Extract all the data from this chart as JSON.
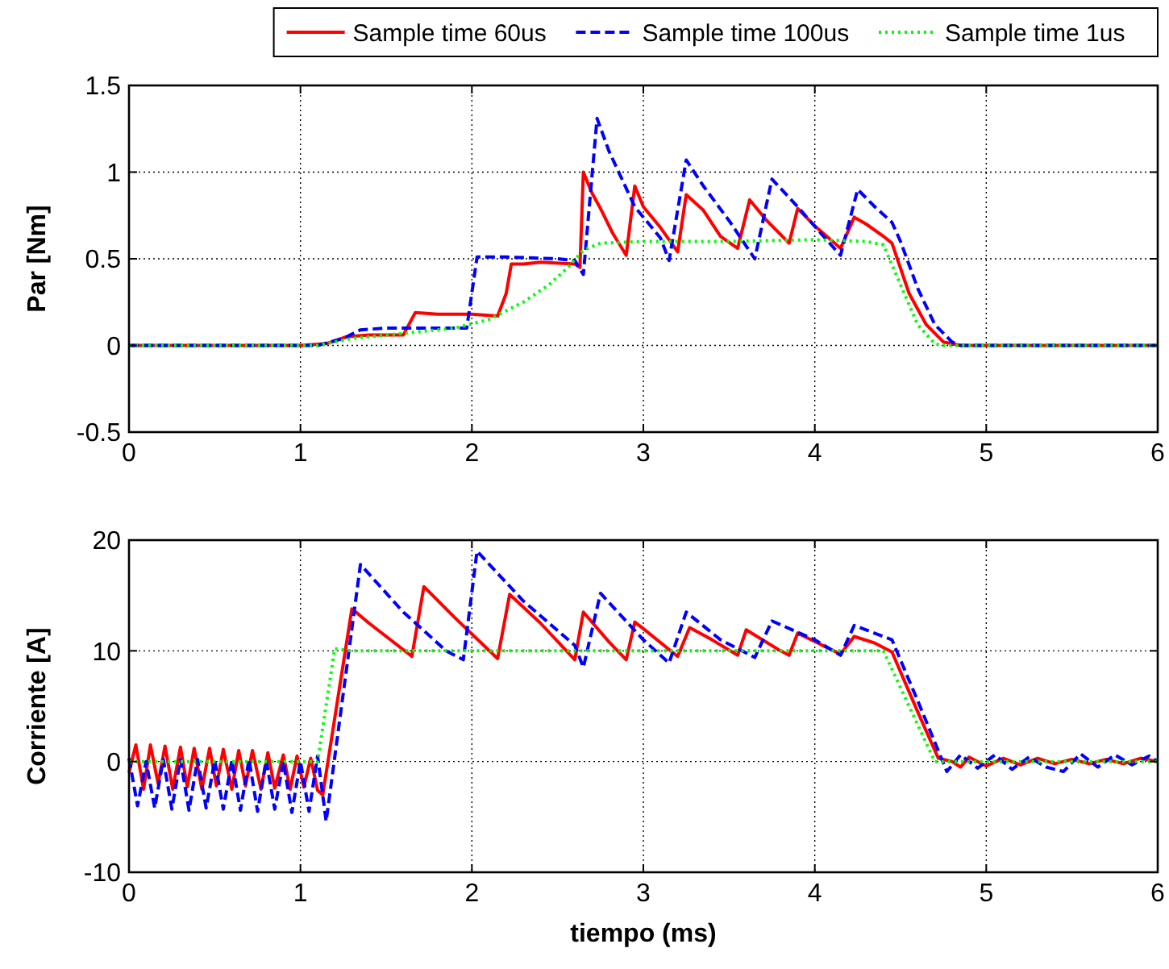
{
  "chart_data": [
    {
      "type": "line",
      "ylabel": "Par [Nm]",
      "xlim": [
        0,
        6
      ],
      "xticks": [
        0,
        1,
        2,
        3,
        4,
        5,
        6
      ],
      "ylim": [
        -0.5,
        1.5
      ],
      "yticks": [
        -0.5,
        0,
        0.5,
        1,
        1.5
      ],
      "grid": true,
      "legend": "top",
      "series": [
        {
          "name": "Sample time 60us",
          "color": "#ff0000",
          "line_style": "solid",
          "x": [
            0,
            1.0,
            1.15,
            1.27,
            1.4,
            1.6,
            1.67,
            1.8,
            2.0,
            2.15,
            2.2,
            2.23,
            2.3,
            2.4,
            2.6,
            2.63,
            2.65,
            2.7,
            2.75,
            2.82,
            2.9,
            2.95,
            3.0,
            3.1,
            3.2,
            3.25,
            3.35,
            3.45,
            3.55,
            3.62,
            3.72,
            3.85,
            3.9,
            4.0,
            4.15,
            4.23,
            4.3,
            4.4,
            4.45,
            4.55,
            4.65,
            4.75,
            4.85,
            6
          ],
          "values": [
            0,
            0,
            0.01,
            0.05,
            0.06,
            0.06,
            0.19,
            0.18,
            0.18,
            0.17,
            0.3,
            0.47,
            0.47,
            0.48,
            0.47,
            0.45,
            1.0,
            0.88,
            0.79,
            0.65,
            0.52,
            0.92,
            0.8,
            0.68,
            0.54,
            0.87,
            0.78,
            0.63,
            0.56,
            0.84,
            0.72,
            0.59,
            0.79,
            0.69,
            0.56,
            0.74,
            0.7,
            0.63,
            0.59,
            0.3,
            0.12,
            0.02,
            0,
            0
          ]
        },
        {
          "name": "Sample time 100us",
          "color": "#0000ff",
          "line_style": "dashed",
          "x": [
            0,
            1.1,
            1.25,
            1.35,
            1.5,
            1.65,
            1.9,
            1.97,
            2.03,
            2.2,
            2.5,
            2.6,
            2.65,
            2.73,
            2.8,
            2.95,
            3.1,
            3.15,
            3.25,
            3.35,
            3.5,
            3.65,
            3.75,
            3.9,
            4.05,
            4.15,
            4.25,
            4.35,
            4.45,
            4.5,
            4.6,
            4.7,
            4.8,
            4.85,
            6
          ],
          "values": [
            0,
            0,
            0.04,
            0.09,
            0.1,
            0.1,
            0.1,
            0.1,
            0.51,
            0.51,
            0.5,
            0.49,
            0.41,
            1.31,
            1.12,
            0.8,
            0.62,
            0.49,
            1.07,
            0.92,
            0.72,
            0.5,
            0.96,
            0.8,
            0.63,
            0.52,
            0.9,
            0.8,
            0.71,
            0.6,
            0.33,
            0.12,
            0.02,
            0,
            0
          ]
        },
        {
          "name": "Sample time 1us",
          "color": "#00ff00",
          "line_style": "dotted",
          "x": [
            0,
            1.1,
            1.3,
            1.6,
            1.9,
            2.1,
            2.3,
            2.45,
            2.55,
            2.65,
            2.75,
            3.0,
            3.5,
            4.0,
            4.3,
            4.4,
            4.5,
            4.6,
            4.7,
            4.75,
            6
          ],
          "values": [
            0,
            0,
            0.04,
            0.07,
            0.1,
            0.15,
            0.25,
            0.35,
            0.44,
            0.55,
            0.59,
            0.6,
            0.6,
            0.61,
            0.6,
            0.58,
            0.35,
            0.12,
            0.01,
            0,
            0
          ]
        }
      ]
    },
    {
      "type": "line",
      "ylabel": "Corriente [A]",
      "xlabel": "tiempo (ms)",
      "xlim": [
        0,
        6
      ],
      "xticks": [
        0,
        1,
        2,
        3,
        4,
        5,
        6
      ],
      "ylim": [
        -10,
        20
      ],
      "yticks": [
        -10,
        0,
        10,
        20
      ],
      "grid": true,
      "series": [
        {
          "color": "#ff0000",
          "line_style": "solid",
          "x": [
            0,
            0.04,
            0.085,
            0.125,
            0.17,
            0.21,
            0.255,
            0.3,
            0.34,
            0.38,
            0.425,
            0.47,
            0.51,
            0.55,
            0.6,
            0.64,
            0.68,
            0.72,
            0.77,
            0.81,
            0.85,
            0.9,
            0.94,
            0.98,
            1.02,
            1.06,
            1.1,
            1.13,
            1.3,
            1.4,
            1.65,
            1.72,
            1.9,
            2.15,
            2.22,
            2.4,
            2.6,
            2.65,
            2.8,
            2.9,
            2.95,
            3.0,
            3.2,
            3.27,
            3.4,
            3.55,
            3.6,
            3.8,
            3.85,
            3.9,
            4.15,
            4.23,
            4.35,
            4.45,
            4.6,
            4.72,
            4.8,
            4.85,
            4.9,
            5.0,
            5.1,
            5.2,
            5.3,
            5.4,
            5.5,
            5.6,
            5.7,
            5.8,
            5.9,
            6.0
          ],
          "values": [
            -1,
            1.5,
            -2.5,
            1.5,
            -2,
            1.4,
            -2.5,
            1.3,
            -2.3,
            1.2,
            -2.5,
            1.2,
            -2.2,
            1.1,
            -2.5,
            1,
            -2.2,
            1,
            -2.5,
            0.8,
            -2.4,
            0.6,
            -2.5,
            0.5,
            -2.3,
            0.3,
            -2.6,
            -3,
            13.8,
            12.5,
            9.5,
            15.8,
            13,
            9.3,
            15.1,
            12.5,
            9.2,
            13.5,
            10.8,
            9.2,
            12.6,
            12,
            9.5,
            12.1,
            11,
            9.6,
            11.9,
            10,
            9.6,
            11.6,
            9.7,
            11.3,
            10.7,
            9.9,
            4.5,
            0.3,
            0,
            -0.5,
            0.4,
            -0.4,
            0.3,
            -0.3,
            0.3,
            -0.2,
            0.2,
            -0.2,
            0.2,
            -0.2,
            0.3,
            0
          ]
        },
        {
          "color": "#0000ff",
          "line_style": "dashed",
          "x": [
            0,
            0.05,
            0.1,
            0.15,
            0.2,
            0.25,
            0.3,
            0.35,
            0.4,
            0.45,
            0.5,
            0.55,
            0.6,
            0.65,
            0.7,
            0.75,
            0.8,
            0.85,
            0.9,
            0.95,
            1.0,
            1.05,
            1.1,
            1.15,
            1.35,
            1.6,
            1.85,
            1.95,
            2.03,
            2.3,
            2.6,
            2.65,
            2.75,
            3.0,
            3.15,
            3.25,
            3.45,
            3.65,
            3.75,
            4.0,
            4.15,
            4.23,
            4.45,
            4.6,
            4.77,
            4.85,
            4.95,
            5.05,
            5.15,
            5.25,
            5.35,
            5.45,
            5.55,
            5.65,
            5.75,
            5.85,
            5.95,
            6.0
          ],
          "values": [
            0.3,
            -4,
            0,
            -4.2,
            0.2,
            -4.3,
            0.2,
            -4.4,
            0.2,
            -4.2,
            0.1,
            -4.3,
            0.1,
            -4.4,
            0.2,
            -4.5,
            0.1,
            -4.3,
            0,
            -4.6,
            0,
            -4.5,
            0.5,
            -5.4,
            17.8,
            13.5,
            10,
            9.2,
            19,
            14.5,
            10.5,
            8.5,
            15.2,
            11,
            8.9,
            13.5,
            11,
            9.4,
            12.7,
            11,
            9.6,
            12.3,
            11,
            5.5,
            -0.9,
            0.6,
            -0.6,
            0.6,
            -0.7,
            0.4,
            -0.5,
            -0.9,
            0.7,
            -0.5,
            0.6,
            -0.3,
            0.5,
            0
          ]
        },
        {
          "color": "#00ff00",
          "line_style": "dotted",
          "x": [
            0,
            1.1,
            1.2,
            1.3,
            2,
            3,
            4,
            4.4,
            4.7,
            6
          ],
          "values": [
            0,
            0,
            10.2,
            10,
            10,
            10,
            10,
            10,
            0,
            0
          ]
        }
      ]
    }
  ]
}
